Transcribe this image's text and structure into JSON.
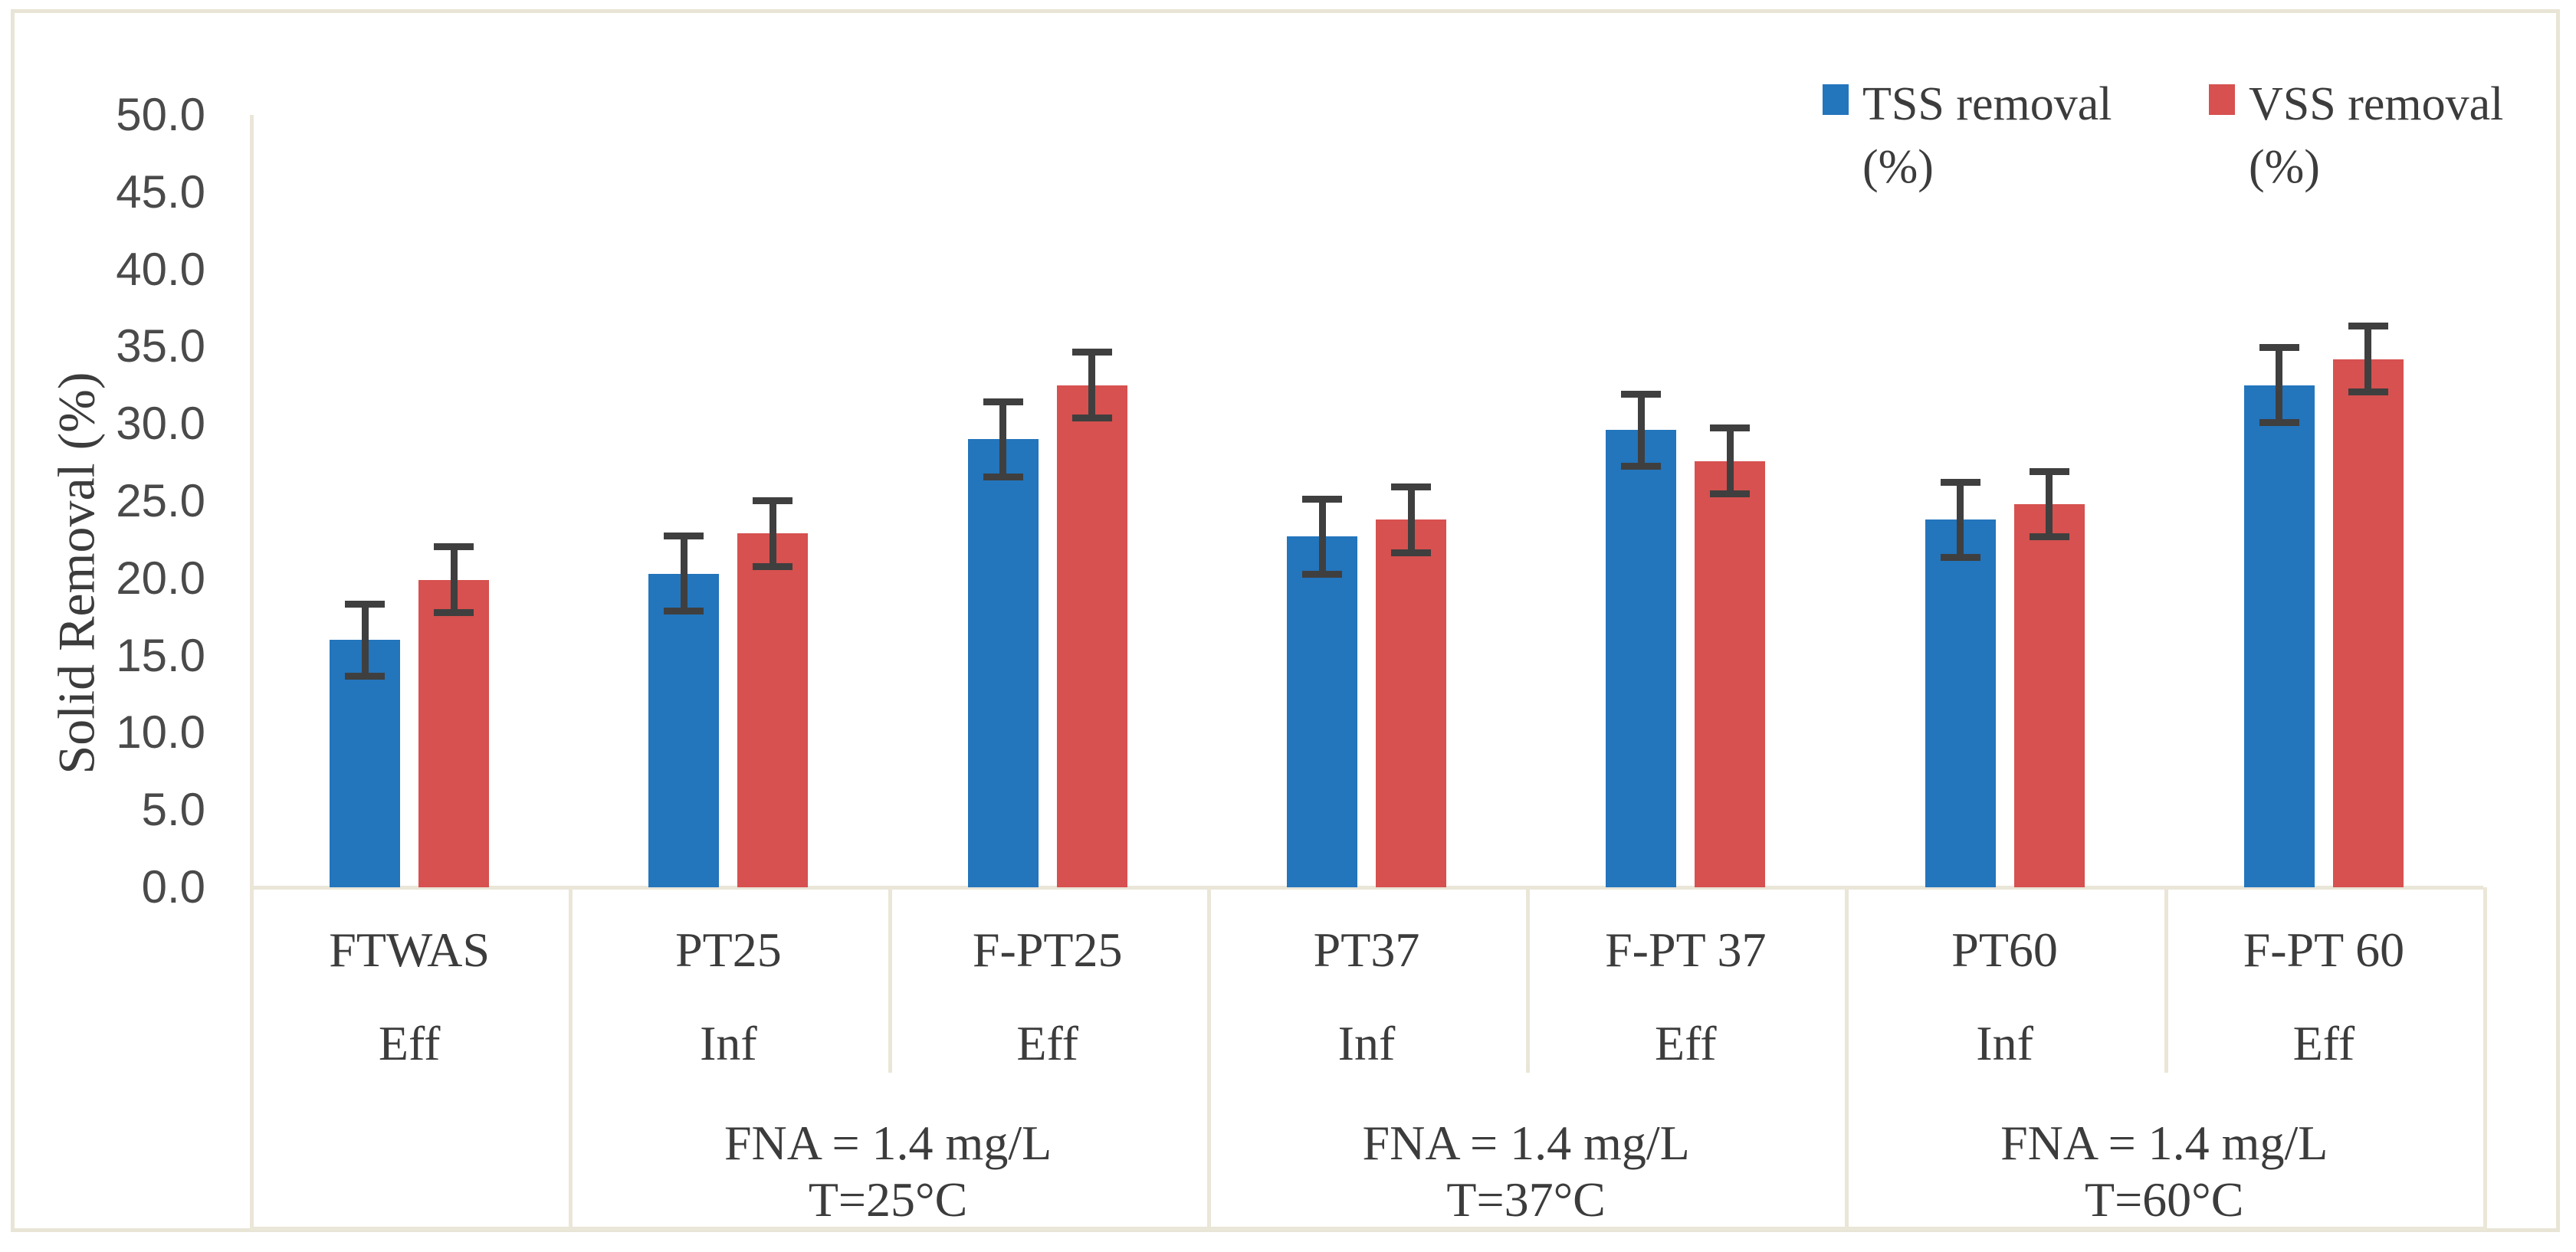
{
  "figure": {
    "background": "#ffffff",
    "border_color": "#e9e5d6",
    "axis_line_color": "#eae6d8",
    "text_color": "#3c3c3c",
    "error_bar_color": "#3f3f3f"
  },
  "chart_data": {
    "type": "bar",
    "title": "",
    "xlabel": "",
    "ylabel": "Solid Removal (%)",
    "ylim": [
      0,
      50
    ],
    "ytick_step": 5,
    "ytick_labels": [
      "0.0",
      "5.0",
      "10.0",
      "15.0",
      "20.0",
      "25.0",
      "30.0",
      "35.0",
      "40.0",
      "45.0",
      "50.0"
    ],
    "grid": false,
    "legend_position": "top-right",
    "categories": [
      {
        "name": "FTWAS",
        "flow": "Eff"
      },
      {
        "name": "PT25",
        "flow": "Inf"
      },
      {
        "name": "F-PT25",
        "flow": "Eff"
      },
      {
        "name": "PT37",
        "flow": "Inf"
      },
      {
        "name": "F-PT 37",
        "flow": "Eff"
      },
      {
        "name": "PT60",
        "flow": "Inf"
      },
      {
        "name": "F-PT 60",
        "flow": "Eff"
      }
    ],
    "group_labels": [
      {
        "lines": [
          "FNA = 1.4 mg/L",
          "T=25°C"
        ],
        "start": 1,
        "end": 2
      },
      {
        "lines": [
          "FNA = 1.4 mg/L",
          "T=37°C"
        ],
        "start": 3,
        "end": 4
      },
      {
        "lines": [
          "FNA = 1.4 mg/L",
          "T=60°C"
        ],
        "start": 5,
        "end": 6
      }
    ],
    "series": [
      {
        "name": "TSS removal (%)",
        "color": "#2375bc",
        "values": [
          16.0,
          20.3,
          29.0,
          22.7,
          29.6,
          23.8,
          32.5
        ],
        "errors": [
          2.2,
          2.3,
          2.3,
          2.3,
          2.2,
          2.3,
          2.3
        ]
      },
      {
        "name": "VSS removal (%)",
        "color": "#d6514f",
        "values": [
          19.9,
          22.9,
          32.5,
          23.8,
          27.6,
          24.8,
          34.2
        ],
        "errors": [
          2.0,
          2.0,
          2.0,
          2.0,
          2.0,
          2.0,
          2.0
        ]
      }
    ]
  }
}
